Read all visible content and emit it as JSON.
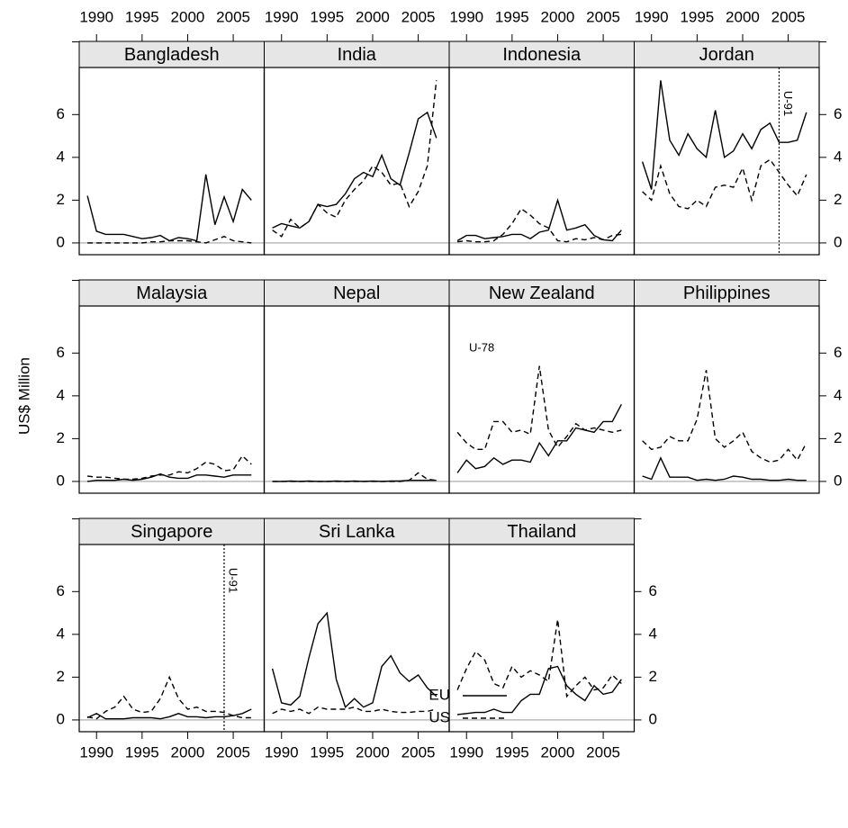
{
  "chart_data": {
    "type": "line",
    "ylabel": "US$ Million",
    "x": [
      1989,
      1990,
      1991,
      1992,
      1993,
      1994,
      1995,
      1996,
      1997,
      1998,
      1999,
      2000,
      2001,
      2002,
      2003,
      2004,
      2005,
      2006,
      2007
    ],
    "xlim": [
      1988.1,
      2008.4
    ],
    "xticks": [
      1990,
      1995,
      2000,
      2005
    ],
    "ylim": [
      -0.55,
      8.2
    ],
    "yticks": [
      0,
      2,
      4,
      6
    ],
    "series": [
      {
        "name": "EU",
        "color": "#000000",
        "dash": "solid"
      },
      {
        "name": "US",
        "color": "#000000",
        "dash": "dashed"
      }
    ],
    "panels": [
      {
        "title": "Bangladesh",
        "series": [
          {
            "values": [
              2.2,
              0.55,
              0.4,
              0.4,
              0.4,
              0.3,
              0.2,
              0.25,
              0.35,
              0.1,
              0.25,
              0.2,
              0.1,
              3.2,
              0.85,
              2.15,
              1.0,
              2.5,
              2.0
            ]
          },
          {
            "values": [
              0,
              0,
              0,
              0,
              0,
              0,
              0,
              0.05,
              0.05,
              0.1,
              0.1,
              0.1,
              0.05,
              0,
              0.15,
              0.3,
              0.1,
              0.05,
              0
            ]
          }
        ]
      },
      {
        "title": "India",
        "series": [
          {
            "values": [
              0.7,
              0.9,
              0.8,
              0.7,
              1.0,
              1.8,
              1.7,
              1.8,
              2.3,
              3.0,
              3.3,
              3.1,
              4.1,
              3.0,
              2.7,
              4.2,
              5.8,
              6.1,
              4.9
            ]
          },
          {
            "values": [
              0.6,
              0.3,
              1.1,
              0.7,
              1.0,
              1.8,
              1.4,
              1.2,
              2.0,
              2.5,
              2.9,
              3.6,
              3.3,
              2.7,
              2.8,
              1.7,
              2.4,
              3.6,
              7.6
            ]
          }
        ]
      },
      {
        "title": "Indonesia",
        "series": [
          {
            "values": [
              0.1,
              0.35,
              0.35,
              0.2,
              0.25,
              0.3,
              0.4,
              0.4,
              0.2,
              0.5,
              0.6,
              2.0,
              0.6,
              0.7,
              0.85,
              0.35,
              0.15,
              0.1,
              0.6
            ]
          },
          {
            "values": [
              0.05,
              0.1,
              0.05,
              0.05,
              0.1,
              0.4,
              0.9,
              1.6,
              1.3,
              0.9,
              0.7,
              0.1,
              0.05,
              0.2,
              0.15,
              0.25,
              0.15,
              0.35,
              0.4
            ]
          }
        ]
      },
      {
        "title": "Jordan",
        "annotation": {
          "text": "U-91",
          "x": 2004
        },
        "series": [
          {
            "values": [
              3.8,
              2.5,
              7.6,
              4.8,
              4.1,
              5.1,
              4.4,
              4.0,
              6.2,
              4.0,
              4.3,
              5.1,
              4.4,
              5.3,
              5.6,
              4.7,
              4.7,
              4.8,
              6.1
            ]
          },
          {
            "values": [
              2.4,
              2.0,
              3.6,
              2.3,
              1.7,
              1.6,
              2.0,
              1.7,
              2.6,
              2.7,
              2.6,
              3.5,
              2.0,
              3.6,
              3.9,
              3.3,
              2.7,
              2.2,
              3.2
            ]
          }
        ]
      },
      {
        "title": "Malaysia",
        "series": [
          {
            "values": [
              0,
              0.05,
              0.05,
              0.05,
              0.1,
              0.05,
              0.1,
              0.2,
              0.35,
              0.2,
              0.15,
              0.15,
              0.3,
              0.3,
              0.25,
              0.2,
              0.3,
              0.3,
              0.3
            ]
          },
          {
            "values": [
              0.25,
              0.2,
              0.2,
              0.15,
              0.1,
              0.1,
              0.15,
              0.25,
              0.3,
              0.3,
              0.45,
              0.4,
              0.6,
              0.9,
              0.8,
              0.5,
              0.55,
              1.2,
              0.8
            ]
          }
        ]
      },
      {
        "title": "Nepal",
        "series": [
          {
            "values": [
              0,
              0,
              0.02,
              0,
              0.02,
              0,
              0,
              0.02,
              0,
              0.02,
              0,
              0.02,
              0,
              0.02,
              0.02,
              0.05,
              0.05,
              0.05,
              0.05
            ]
          },
          {
            "values": [
              0,
              0,
              0,
              0,
              0,
              0,
              0,
              0,
              0,
              0,
              0,
              0,
              0,
              0,
              0,
              0.05,
              0.4,
              0.1,
              0.05
            ]
          }
        ]
      },
      {
        "title": "New Zealand",
        "annotation": {
          "text": "U-78"
        },
        "series": [
          {
            "values": [
              0.4,
              1.0,
              0.6,
              0.7,
              1.1,
              0.8,
              1.0,
              1.0,
              0.9,
              1.8,
              1.2,
              1.9,
              1.9,
              2.5,
              2.4,
              2.3,
              2.8,
              2.8,
              3.6
            ]
          },
          {
            "values": [
              2.3,
              1.8,
              1.5,
              1.5,
              2.8,
              2.8,
              2.3,
              2.4,
              2.2,
              5.4,
              2.4,
              1.6,
              2.1,
              2.7,
              2.4,
              2.5,
              2.4,
              2.3,
              2.4
            ]
          }
        ]
      },
      {
        "title": "Philippines",
        "series": [
          {
            "values": [
              0.25,
              0.1,
              1.1,
              0.2,
              0.2,
              0.2,
              0.05,
              0.1,
              0.05,
              0.1,
              0.25,
              0.2,
              0.1,
              0.1,
              0.05,
              0.05,
              0.1,
              0.05,
              0.05
            ]
          },
          {
            "values": [
              1.9,
              1.5,
              1.6,
              2.1,
              1.9,
              1.9,
              2.9,
              5.2,
              2.0,
              1.6,
              1.9,
              2.3,
              1.4,
              1.1,
              0.9,
              1.0,
              1.5,
              1.0,
              1.8
            ]
          }
        ]
      },
      {
        "title": "Singapore",
        "annotation": {
          "text": "U-91",
          "x": 2004
        },
        "series": [
          {
            "values": [
              0.1,
              0.3,
              0.05,
              0.05,
              0.05,
              0.1,
              0.1,
              0.1,
              0.05,
              0.15,
              0.3,
              0.15,
              0.15,
              0.1,
              0.15,
              0.15,
              0.2,
              0.3,
              0.5
            ]
          },
          {
            "values": [
              0.15,
              0.05,
              0.4,
              0.6,
              1.1,
              0.5,
              0.35,
              0.4,
              1.0,
              2.0,
              1.0,
              0.5,
              0.6,
              0.4,
              0.4,
              0.35,
              0.2,
              0.1,
              0.1
            ]
          }
        ]
      },
      {
        "title": "Sri Lanka",
        "series": [
          {
            "values": [
              2.4,
              0.8,
              0.7,
              1.1,
              2.9,
              4.5,
              5.0,
              1.9,
              0.6,
              1.0,
              0.6,
              0.8,
              2.5,
              3.0,
              2.2,
              1.8,
              2.1,
              1.5,
              1.1
            ]
          },
          {
            "values": [
              0.3,
              0.5,
              0.4,
              0.5,
              0.3,
              0.6,
              0.5,
              0.5,
              0.5,
              0.6,
              0.4,
              0.4,
              0.5,
              0.4,
              0.35,
              0.35,
              0.4,
              0.4,
              0.5
            ]
          }
        ]
      },
      {
        "title": "Thailand",
        "series": [
          {
            "values": [
              0.25,
              0.3,
              0.35,
              0.35,
              0.5,
              0.35,
              0.35,
              0.9,
              1.2,
              1.2,
              2.4,
              2.5,
              1.6,
              1.2,
              0.9,
              1.6,
              1.2,
              1.3,
              1.9
            ]
          },
          {
            "values": [
              1.4,
              2.4,
              3.2,
              2.8,
              1.7,
              1.5,
              2.5,
              2.0,
              2.3,
              2.1,
              1.8,
              4.7,
              1.1,
              1.6,
              2.0,
              1.4,
              1.5,
              2.1,
              1.7
            ]
          }
        ]
      }
    ]
  }
}
